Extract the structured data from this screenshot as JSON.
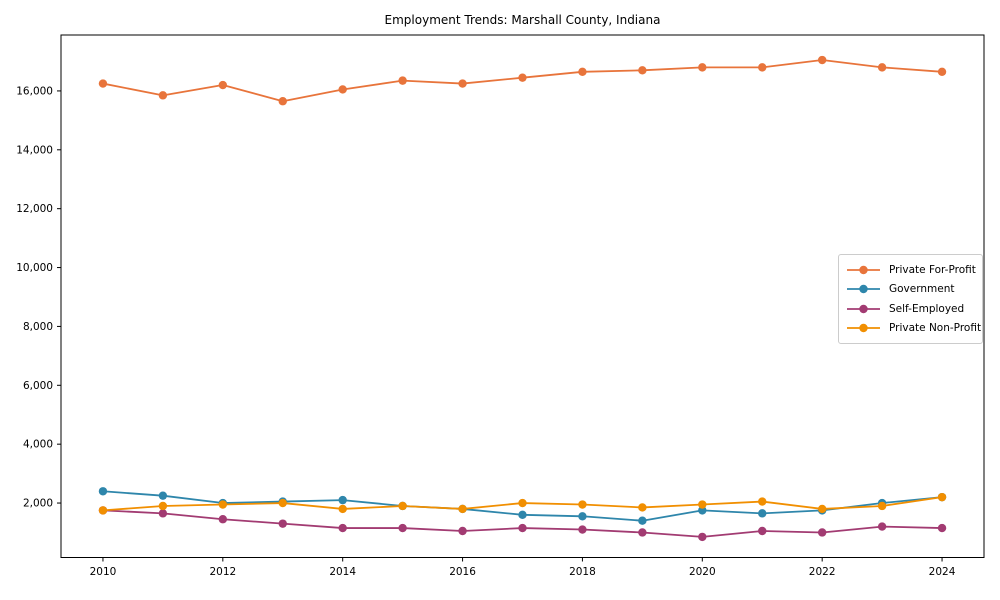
{
  "title": "Employment Trends: Marshall County, Indiana",
  "chart_data": {
    "type": "line",
    "title": "Employment Trends: Marshall County, Indiana",
    "xlabel": "",
    "ylabel": "",
    "grid": false,
    "legend_position": "center right",
    "xlim": [
      2009.3,
      2024.7
    ],
    "ylim": [
      150,
      17900
    ],
    "x": [
      2010,
      2011,
      2012,
      2013,
      2014,
      2015,
      2016,
      2017,
      2018,
      2019,
      2020,
      2021,
      2022,
      2023,
      2024
    ],
    "x_ticks": [
      2010,
      2012,
      2014,
      2016,
      2018,
      2020,
      2022,
      2024
    ],
    "x_tick_labels": [
      "2010",
      "2012",
      "2014",
      "2016",
      "2018",
      "2020",
      "2022",
      "2024"
    ],
    "y_ticks": [
      2000,
      4000,
      6000,
      8000,
      10000,
      12000,
      14000,
      16000
    ],
    "y_tick_labels": [
      "2,000",
      "4,000",
      "6,000",
      "8,000",
      "10,000",
      "12,000",
      "14,000",
      "16,000"
    ],
    "series": [
      {
        "name": "Private For-Profit",
        "color": "#E8743B",
        "values": [
          16250,
          15850,
          16200,
          15650,
          16050,
          16350,
          16250,
          16450,
          16650,
          16700,
          16800,
          16800,
          17050,
          16800,
          16650
        ]
      },
      {
        "name": "Government",
        "color": "#2E86AB",
        "values": [
          2400,
          2250,
          2000,
          2050,
          2100,
          1900,
          1800,
          1600,
          1550,
          1400,
          1750,
          1650,
          1750,
          2000,
          2200
        ]
      },
      {
        "name": "Self-Employed",
        "color": "#A23B72",
        "values": [
          1750,
          1650,
          1450,
          1300,
          1150,
          1150,
          1050,
          1150,
          1100,
          1000,
          850,
          1050,
          1000,
          1200,
          1150
        ]
      },
      {
        "name": "Private Non-Profit",
        "color": "#F18F01",
        "values": [
          1750,
          1900,
          1950,
          2000,
          1800,
          1900,
          1800,
          2000,
          1950,
          1850,
          1950,
          2050,
          1800,
          1900,
          2200
        ]
      }
    ]
  }
}
